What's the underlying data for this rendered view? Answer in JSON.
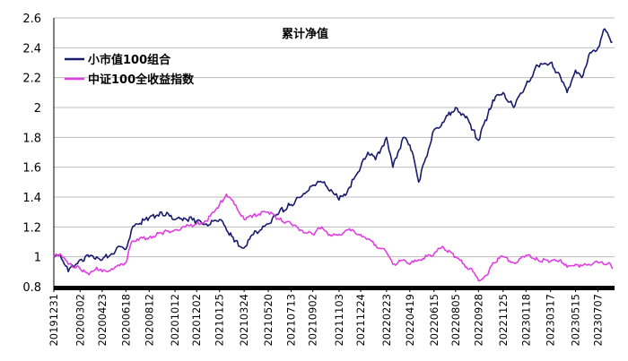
{
  "chart_data": {
    "type": "line",
    "title": "累计净值",
    "xlabel": "",
    "ylabel": "",
    "ylim": [
      0.8,
      2.6
    ],
    "yticks": [
      0.8,
      1,
      1.2,
      1.4,
      1.6,
      1.8,
      2,
      2.2,
      2.4,
      2.6
    ],
    "ytick_labels": [
      "0.8",
      "1",
      "1.2",
      "1.4",
      "1.6",
      "1.8",
      "2",
      "2.2",
      "2.4",
      "2.6"
    ],
    "grid": "horizontal",
    "legend": "top-left",
    "x_ticks": [
      "20191231",
      "20200302",
      "20200423",
      "20200618",
      "20200812",
      "20201012",
      "20201202",
      "20210125",
      "20210324",
      "20210520",
      "20210713",
      "20210902",
      "20211103",
      "20211224",
      "20220223",
      "20220419",
      "20220615",
      "20220805",
      "20220928",
      "20221125",
      "20230118",
      "20230317",
      "20230515",
      "20230707"
    ],
    "series": [
      {
        "name": "小市值100组合",
        "color": "#1a1a6e",
        "x": [
          "20191231",
          "20200115",
          "20200203",
          "20200302",
          "20200323",
          "20200410",
          "20200423",
          "20200515",
          "20200603",
          "20200618",
          "20200701",
          "20200715",
          "20200812",
          "20200910",
          "20201012",
          "20201102",
          "20201202",
          "20201225",
          "20210125",
          "20210208",
          "20210301",
          "20210324",
          "20210415",
          "20210520",
          "20210615",
          "20210713",
          "20210805",
          "20210902",
          "20210923",
          "20211015",
          "20211103",
          "20211124",
          "20211224",
          "20220110",
          "20220128",
          "20220223",
          "20220310",
          "20220322",
          "20220406",
          "20220419",
          "20220427",
          "20220510",
          "20220615",
          "20220705",
          "20220805",
          "20220825",
          "20220915",
          "20220928",
          "20221020",
          "20221101",
          "20221125",
          "20221220",
          "20230118",
          "20230215",
          "20230317",
          "20230410",
          "20230425",
          "20230515",
          "20230530",
          "20230615",
          "20230707",
          "20230720",
          "20230801",
          "20230810"
        ],
        "values": [
          1.0,
          1.01,
          0.9,
          0.98,
          1.0,
          1.0,
          0.98,
          1.02,
          1.07,
          1.05,
          1.18,
          1.22,
          1.26,
          1.3,
          1.25,
          1.26,
          1.24,
          1.22,
          1.25,
          1.2,
          1.1,
          1.06,
          1.15,
          1.22,
          1.3,
          1.35,
          1.4,
          1.48,
          1.5,
          1.45,
          1.38,
          1.45,
          1.6,
          1.7,
          1.65,
          1.8,
          1.6,
          1.7,
          1.8,
          1.75,
          1.68,
          1.5,
          1.85,
          1.9,
          2.0,
          1.95,
          1.85,
          1.78,
          1.95,
          2.05,
          2.1,
          2.0,
          2.15,
          2.28,
          2.3,
          2.2,
          2.1,
          2.25,
          2.2,
          2.35,
          2.4,
          2.52,
          2.48,
          2.44
        ]
      },
      {
        "name": "中证100全收益指数",
        "color": "#e040e0",
        "x": [
          "20191231",
          "20200115",
          "20200203",
          "20200302",
          "20200323",
          "20200410",
          "20200423",
          "20200515",
          "20200603",
          "20200618",
          "20200701",
          "20200715",
          "20200812",
          "20200910",
          "20201012",
          "20201102",
          "20201202",
          "20201225",
          "20210125",
          "20210210",
          "20210301",
          "20210324",
          "20210415",
          "20210520",
          "20210615",
          "20210713",
          "20210805",
          "20210902",
          "20210923",
          "20211015",
          "20211103",
          "20211124",
          "20211224",
          "20220110",
          "20220128",
          "20220223",
          "20220310",
          "20220322",
          "20220406",
          "20220419",
          "20220510",
          "20220615",
          "20220705",
          "20220805",
          "20220825",
          "20220915",
          "20220928",
          "20221020",
          "20221101",
          "20221125",
          "20221220",
          "20230118",
          "20230215",
          "20230317",
          "20230410",
          "20230425",
          "20230515",
          "20230530",
          "20230615",
          "20230707",
          "20230720",
          "20230801",
          "20230810"
        ],
        "values": [
          1.0,
          1.02,
          0.95,
          0.92,
          0.88,
          0.93,
          0.9,
          0.92,
          0.94,
          0.96,
          1.1,
          1.12,
          1.13,
          1.16,
          1.18,
          1.2,
          1.22,
          1.24,
          1.35,
          1.42,
          1.35,
          1.25,
          1.28,
          1.3,
          1.25,
          1.22,
          1.18,
          1.15,
          1.2,
          1.14,
          1.15,
          1.18,
          1.15,
          1.12,
          1.08,
          1.03,
          0.95,
          0.96,
          0.98,
          0.95,
          0.98,
          1.02,
          1.07,
          1.0,
          0.95,
          0.9,
          0.84,
          0.88,
          0.96,
          1.0,
          0.96,
          1.01,
          0.98,
          0.97,
          0.98,
          0.93,
          0.95,
          0.94,
          0.95,
          0.96,
          0.95,
          0.96,
          0.92
        ]
      }
    ]
  }
}
